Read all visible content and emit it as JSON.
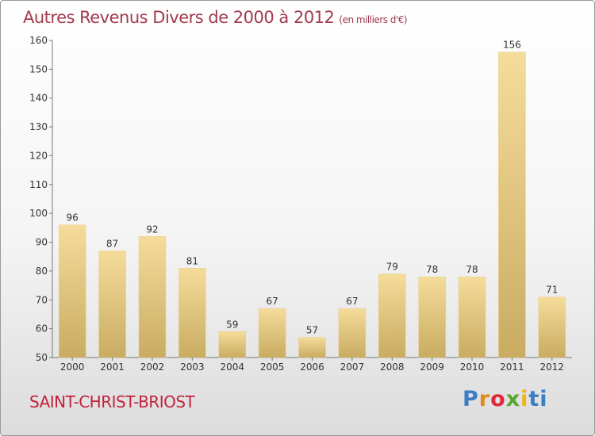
{
  "header": {
    "title": "Autres Revenus Divers de 2000 à 2012",
    "unit": "(en milliers d'€)"
  },
  "footer": {
    "city": "SAINT-CHRIST-BRIOST",
    "brand_parts": [
      "P",
      "r",
      "o",
      "x",
      "i",
      "ti"
    ]
  },
  "colors": {
    "bar_light": "#f5dc9a",
    "bar_dark": "#c9ac62",
    "title": "#a23a4e",
    "city": "#c2233c"
  },
  "chart_data": {
    "type": "bar",
    "title": "Autres Revenus Divers de 2000 à 2012",
    "xlabel": "",
    "ylabel": "",
    "categories": [
      "2000",
      "2001",
      "2002",
      "2003",
      "2004",
      "2005",
      "2006",
      "2007",
      "2008",
      "2009",
      "2010",
      "2011",
      "2012"
    ],
    "values": [
      96,
      87,
      92,
      81,
      59,
      67,
      57,
      67,
      79,
      78,
      78,
      156,
      71
    ],
    "ylim": [
      50,
      160
    ],
    "yticks": [
      50,
      60,
      70,
      80,
      90,
      100,
      110,
      120,
      130,
      140,
      150,
      160
    ],
    "grid": false,
    "legend": "none"
  }
}
